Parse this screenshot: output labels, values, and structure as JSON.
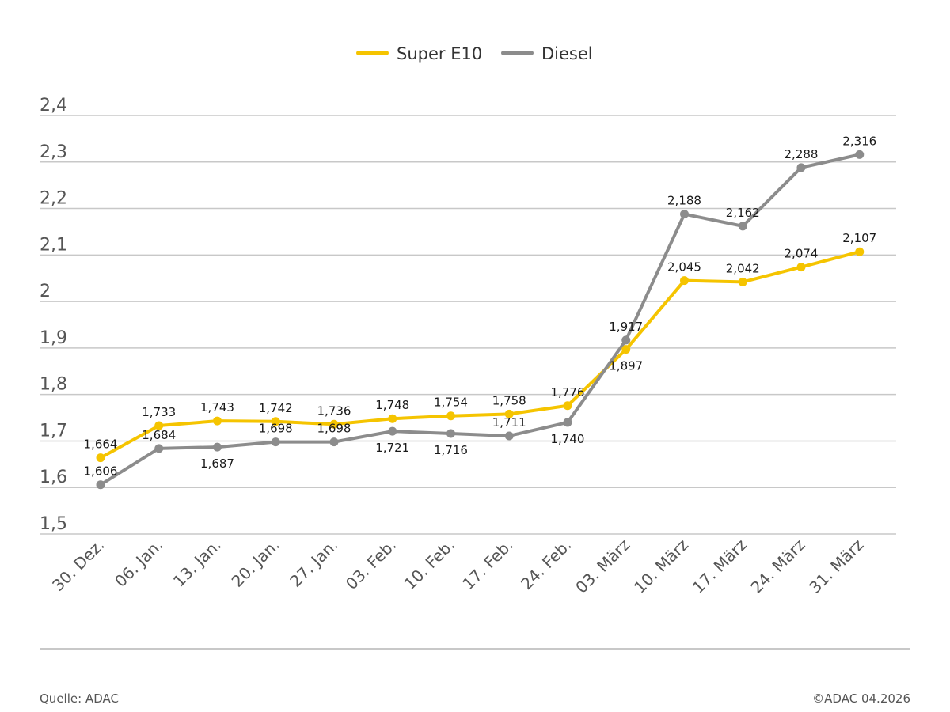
{
  "chart_data": {
    "type": "line",
    "categories": [
      "30. Dez.",
      "06. Jan.",
      "13. Jan.",
      "20. Jan.",
      "27. Jan.",
      "03. Feb.",
      "10. Feb.",
      "17. Feb.",
      "24. Feb.",
      "03. März",
      "10. März",
      "17. März",
      "24. März",
      "31. März"
    ],
    "series": [
      {
        "name": "Super E10",
        "color": "#f5c400",
        "values": [
          1.664,
          1.733,
          1.743,
          1.742,
          1.736,
          1.748,
          1.754,
          1.758,
          1.776,
          1.897,
          2.045,
          2.042,
          2.074,
          2.107
        ],
        "labels": [
          "1,664",
          "1,733",
          "1,743",
          "1,742",
          "1,736",
          "1,748",
          "1,754",
          "1,758",
          "1,776",
          "1,897",
          "2,045",
          "2,042",
          "2,074",
          "2,107"
        ],
        "label_side": [
          "above",
          "above",
          "above",
          "above",
          "above",
          "above",
          "above",
          "above",
          "above",
          "below",
          "above",
          "above",
          "above",
          "above"
        ]
      },
      {
        "name": "Diesel",
        "color": "#8c8c8c",
        "values": [
          1.606,
          1.684,
          1.687,
          1.698,
          1.698,
          1.721,
          1.716,
          1.711,
          1.74,
          1.917,
          2.188,
          2.162,
          2.288,
          2.316
        ],
        "labels": [
          "1,606",
          "1,684",
          "1,687",
          "1,698",
          "1,698",
          "1,721",
          "1,716",
          "1,711",
          "1,740",
          "1,917",
          "2,188",
          "2,162",
          "2,288",
          "2,316"
        ],
        "label_side": [
          "above",
          "above",
          "below",
          "above",
          "above",
          "below",
          "below",
          "above",
          "below",
          "above",
          "above",
          "above",
          "above",
          "above"
        ]
      }
    ],
    "ylim": [
      1.5,
      2.4
    ],
    "yticks": [
      1.5,
      1.6,
      1.7,
      1.8,
      1.9,
      2.0,
      2.1,
      2.2,
      2.3,
      2.4
    ],
    "ytick_labels": [
      "1,5",
      "1,6",
      "1,7",
      "1,8",
      "1,9",
      "2",
      "2,1",
      "2,2",
      "2,3",
      "2,4"
    ],
    "grid": true,
    "legend": "top-center",
    "title": "",
    "xlabel": "",
    "ylabel": ""
  },
  "footer": {
    "source": "Quelle: ADAC",
    "copyright": "©ADAC 04.2026"
  }
}
